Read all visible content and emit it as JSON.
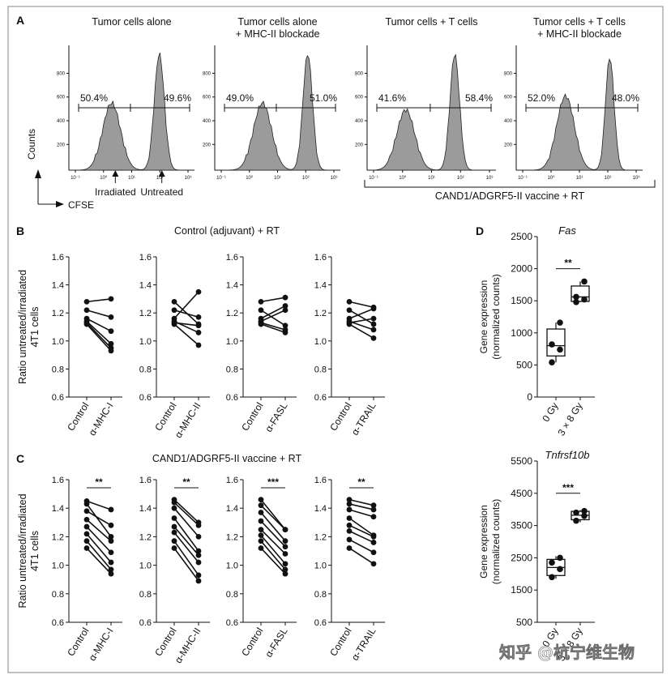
{
  "watermark": "知乎 @杭宁维生物",
  "chart_data": {
    "panelA": {
      "panel_label": "A",
      "type": "histogram",
      "y_tick_labels": [
        "200",
        "400",
        "600",
        "800"
      ],
      "x_tick_labels": [
        "10⁻¹",
        "10⁰",
        "10¹",
        "10²",
        "10³"
      ],
      "ylabel": "Counts",
      "xlabel": "CFSE",
      "arrow_labels": [
        "Irradiated",
        "Untreated"
      ],
      "bracket_label": "CAND1/ADGRF5-II vaccine + RT",
      "plots": [
        {
          "title": "Tumor cells alone",
          "left_pct": "50.4%",
          "right_pct": "49.6%"
        },
        {
          "title": "Tumor cells alone\n+ MHC-II blockade",
          "left_pct": "49.0%",
          "right_pct": "51.0%"
        },
        {
          "title": "Tumor cells + T cells",
          "left_pct": "41.6%",
          "right_pct": "58.4%"
        },
        {
          "title": "Tumor cells + T cells\n+ MHC-II blockade",
          "left_pct": "52.0%",
          "right_pct": "48.0%"
        }
      ]
    },
    "panelB": {
      "panel_label": "B",
      "type": "paired-line",
      "title": "Control (adjuvant) + RT",
      "ylabel": "Ratio untreated/irradiated\n4T1 cells",
      "ylim": [
        0.6,
        1.6
      ],
      "yticks": [
        "0.6",
        "0.8",
        "1.0",
        "1.2",
        "1.4",
        "1.6"
      ],
      "plots": [
        {
          "categories": [
            "Control",
            "α-MHC-I"
          ],
          "pairs": [
            [
              1.28,
              1.3
            ],
            [
              1.22,
              1.17
            ],
            [
              1.16,
              1.07
            ],
            [
              1.14,
              0.98
            ],
            [
              1.13,
              0.95
            ],
            [
              1.12,
              0.93
            ]
          ],
          "sig": ""
        },
        {
          "categories": [
            "Control",
            "α-MHC-II"
          ],
          "pairs": [
            [
              1.28,
              1.12
            ],
            [
              1.22,
              1.17
            ],
            [
              1.16,
              1.35
            ],
            [
              1.14,
              1.06
            ],
            [
              1.13,
              1.11
            ],
            [
              1.12,
              0.97
            ]
          ],
          "sig": ""
        },
        {
          "categories": [
            "Control",
            "α-FASL"
          ],
          "pairs": [
            [
              1.28,
              1.31
            ],
            [
              1.22,
              1.11
            ],
            [
              1.16,
              1.25
            ],
            [
              1.14,
              1.22
            ],
            [
              1.13,
              1.08
            ],
            [
              1.12,
              1.06
            ]
          ],
          "sig": ""
        },
        {
          "categories": [
            "Control",
            "α-TRAIL"
          ],
          "pairs": [
            [
              1.28,
              1.24
            ],
            [
              1.22,
              1.12
            ],
            [
              1.16,
              1.23
            ],
            [
              1.14,
              1.08
            ],
            [
              1.13,
              1.16
            ],
            [
              1.12,
              1.02
            ]
          ],
          "sig": ""
        }
      ]
    },
    "panelC": {
      "panel_label": "C",
      "type": "paired-line",
      "title": "CAND1/ADGRF5-II vaccine + RT",
      "ylabel": "Ratio untreated/irradiated\n4T1 cells",
      "ylim": [
        0.6,
        1.6
      ],
      "yticks": [
        "0.6",
        "0.8",
        "1.0",
        "1.2",
        "1.4",
        "1.6"
      ],
      "plots": [
        {
          "categories": [
            "Control",
            "α-MHC-I"
          ],
          "pairs": [
            [
              1.45,
              1.39
            ],
            [
              1.43,
              1.2
            ],
            [
              1.38,
              1.28
            ],
            [
              1.32,
              1.17
            ],
            [
              1.27,
              1.09
            ],
            [
              1.22,
              1.02
            ],
            [
              1.17,
              0.97
            ],
            [
              1.12,
              0.94
            ]
          ],
          "sig": "**"
        },
        {
          "categories": [
            "Control",
            "α-MHC-II"
          ],
          "pairs": [
            [
              1.46,
              1.3
            ],
            [
              1.44,
              1.28
            ],
            [
              1.4,
              1.2
            ],
            [
              1.33,
              1.1
            ],
            [
              1.27,
              1.07
            ],
            [
              1.23,
              1.02
            ],
            [
              1.17,
              0.93
            ],
            [
              1.12,
              0.89
            ]
          ],
          "sig": "**"
        },
        {
          "categories": [
            "Control",
            "α-FASL"
          ],
          "pairs": [
            [
              1.46,
              1.25
            ],
            [
              1.42,
              1.25
            ],
            [
              1.37,
              1.17
            ],
            [
              1.31,
              1.13
            ],
            [
              1.25,
              1.08
            ],
            [
              1.21,
              1.01
            ],
            [
              1.17,
              0.97
            ],
            [
              1.12,
              0.94
            ]
          ],
          "sig": "***"
        },
        {
          "categories": [
            "Control",
            "α-TRAIL"
          ],
          "pairs": [
            [
              1.46,
              1.42
            ],
            [
              1.43,
              1.39
            ],
            [
              1.39,
              1.34
            ],
            [
              1.33,
              1.21
            ],
            [
              1.28,
              1.2
            ],
            [
              1.24,
              1.16
            ],
            [
              1.18,
              1.09
            ],
            [
              1.12,
              1.01
            ]
          ],
          "sig": "**"
        }
      ]
    },
    "panelD": {
      "panel_label": "D",
      "type": "boxplot",
      "ylabel": "Gene expression\n(normalized counts)",
      "plots": [
        {
          "title": "Fas",
          "categories": [
            "0 Gy",
            "3 × 8 Gy"
          ],
          "ylim": [
            0,
            2500
          ],
          "yticks": [
            "0",
            "500",
            "1000",
            "1500",
            "2000",
            "2500"
          ],
          "groups": [
            {
              "points": [
                540,
                740,
                820,
                1160
              ],
              "q1": 640,
              "median": 800,
              "q3": 1060,
              "min": 540,
              "max": 1160
            },
            {
              "points": [
                1480,
                1520,
                1560,
                1800
              ],
              "q1": 1490,
              "median": 1560,
              "q3": 1730,
              "min": 1480,
              "max": 1800
            }
          ],
          "sig": "**"
        },
        {
          "title": "Tnfrsf10b",
          "categories": [
            "0 Gy",
            "3 × 8 Gy"
          ],
          "ylim": [
            500,
            5500
          ],
          "yticks": [
            "500",
            "1500",
            "2500",
            "3500",
            "4500",
            "5500"
          ],
          "groups": [
            {
              "points": [
                1900,
                2150,
                2350,
                2500
              ],
              "q1": 1950,
              "median": 2200,
              "q3": 2450,
              "min": 1850,
              "max": 2550
            },
            {
              "points": [
                3650,
                3800,
                3900,
                3950
              ],
              "q1": 3680,
              "median": 3820,
              "q3": 3940,
              "min": 3600,
              "max": 3980
            }
          ],
          "sig": "***"
        }
      ]
    }
  }
}
